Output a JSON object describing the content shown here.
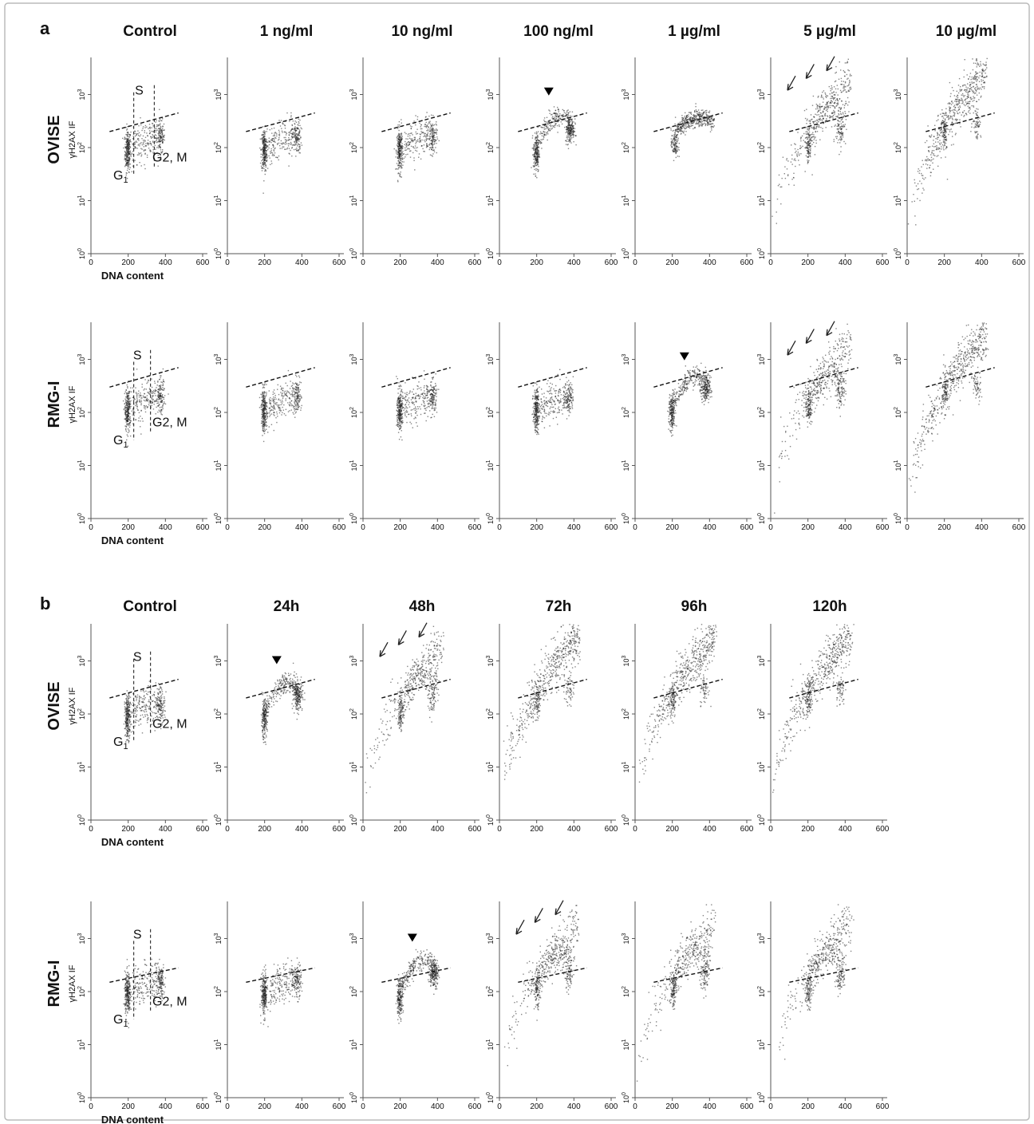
{
  "figure": {
    "panel_a": {
      "letter": "a",
      "columns": [
        "Control",
        "1 ng/ml",
        "10 ng/ml",
        "100 ng/ml",
        "1 µg/ml",
        "5 µg/ml",
        "10 µg/ml"
      ],
      "rows": [
        "OVISE",
        "RMG-I"
      ]
    },
    "panel_b": {
      "letter": "b",
      "columns": [
        "Control",
        "24h",
        "48h",
        "72h",
        "96h",
        "120h"
      ],
      "rows": [
        "OVISE",
        "RMG-I"
      ]
    },
    "y_axis_label": "γH2AX IF",
    "x_axis_label": "DNA content",
    "x_ticks": [
      "0",
      "200",
      "400",
      "600"
    ],
    "y_ticks": [
      "10",
      "10",
      "10",
      "10"
    ],
    "y_tick_exponents": [
      "0",
      "1",
      "2",
      "3"
    ],
    "phase_labels": {
      "g1": "G",
      "g1_sub": "1",
      "s": "S",
      "g2m": "G2, M"
    }
  },
  "colors": {
    "points": "#222222",
    "axes": "#555555",
    "threshold": "#111111",
    "frame": "#bbbbbb"
  },
  "chart_data": {
    "type": "scatter",
    "x_range": [
      0,
      600
    ],
    "y_scale": "log",
    "y_range": [
      1,
      5000
    ],
    "panels": [
      {
        "panel": "a",
        "row": "OVISE",
        "column": "Control",
        "profile": "cycle",
        "threshold": [
          [
            100,
            200
          ],
          [
            470,
            450
          ]
        ],
        "marker": "none"
      },
      {
        "panel": "a",
        "row": "OVISE",
        "column": "1 ng/ml",
        "profile": "cycle",
        "threshold": [
          [
            100,
            200
          ],
          [
            470,
            450
          ]
        ],
        "marker": "none"
      },
      {
        "panel": "a",
        "row": "OVISE",
        "column": "10 ng/ml",
        "profile": "cycle",
        "threshold": [
          [
            100,
            200
          ],
          [
            470,
            450
          ]
        ],
        "marker": "none"
      },
      {
        "panel": "a",
        "row": "OVISE",
        "column": "100 ng/ml",
        "profile": "rise",
        "threshold": [
          [
            100,
            200
          ],
          [
            470,
            450
          ]
        ],
        "marker": "arrowhead"
      },
      {
        "panel": "a",
        "row": "OVISE",
        "column": "1 µg/ml",
        "profile": "high",
        "threshold": [
          [
            100,
            200
          ],
          [
            470,
            450
          ]
        ],
        "marker": "none"
      },
      {
        "panel": "a",
        "row": "OVISE",
        "column": "5 µg/ml",
        "profile": "apoptotic",
        "threshold": [
          [
            100,
            200
          ],
          [
            470,
            450
          ]
        ],
        "marker": "arrows"
      },
      {
        "panel": "a",
        "row": "OVISE",
        "column": "10 µg/ml",
        "profile": "apoptotic-heavy",
        "threshold": [
          [
            100,
            200
          ],
          [
            470,
            450
          ]
        ],
        "marker": "none"
      },
      {
        "panel": "a",
        "row": "RMG-I",
        "column": "Control",
        "profile": "cycle",
        "threshold": [
          [
            100,
            300
          ],
          [
            470,
            700
          ]
        ],
        "marker": "none"
      },
      {
        "panel": "a",
        "row": "RMG-I",
        "column": "1 ng/ml",
        "profile": "cycle",
        "threshold": [
          [
            100,
            300
          ],
          [
            470,
            700
          ]
        ],
        "marker": "none"
      },
      {
        "panel": "a",
        "row": "RMG-I",
        "column": "10 ng/ml",
        "profile": "cycle",
        "threshold": [
          [
            100,
            300
          ],
          [
            470,
            700
          ]
        ],
        "marker": "none"
      },
      {
        "panel": "a",
        "row": "RMG-I",
        "column": "100 ng/ml",
        "profile": "cycle",
        "threshold": [
          [
            100,
            300
          ],
          [
            470,
            700
          ]
        ],
        "marker": "none"
      },
      {
        "panel": "a",
        "row": "RMG-I",
        "column": "1 µg/ml",
        "profile": "rise",
        "threshold": [
          [
            100,
            300
          ],
          [
            470,
            700
          ]
        ],
        "marker": "arrowhead"
      },
      {
        "panel": "a",
        "row": "RMG-I",
        "column": "5 µg/ml",
        "profile": "apoptotic",
        "threshold": [
          [
            100,
            300
          ],
          [
            470,
            700
          ]
        ],
        "marker": "arrows"
      },
      {
        "panel": "a",
        "row": "RMG-I",
        "column": "10 µg/ml",
        "profile": "apoptotic-heavy",
        "threshold": [
          [
            100,
            300
          ],
          [
            470,
            700
          ]
        ],
        "marker": "none"
      },
      {
        "panel": "b",
        "row": "OVISE",
        "column": "Control",
        "profile": "cycle",
        "threshold": [
          [
            100,
            200
          ],
          [
            470,
            450
          ]
        ],
        "marker": "none"
      },
      {
        "panel": "b",
        "row": "OVISE",
        "column": "24h",
        "profile": "rise",
        "threshold": [
          [
            100,
            200
          ],
          [
            470,
            450
          ]
        ],
        "marker": "arrowhead"
      },
      {
        "panel": "b",
        "row": "OVISE",
        "column": "48h",
        "profile": "apoptotic",
        "threshold": [
          [
            100,
            200
          ],
          [
            470,
            450
          ]
        ],
        "marker": "arrows"
      },
      {
        "panel": "b",
        "row": "OVISE",
        "column": "72h",
        "profile": "apoptotic-heavy",
        "threshold": [
          [
            100,
            200
          ],
          [
            470,
            450
          ]
        ],
        "marker": "none"
      },
      {
        "panel": "b",
        "row": "OVISE",
        "column": "96h",
        "profile": "apoptotic-heavy",
        "threshold": [
          [
            100,
            200
          ],
          [
            470,
            450
          ]
        ],
        "marker": "none"
      },
      {
        "panel": "b",
        "row": "OVISE",
        "column": "120h",
        "profile": "apoptotic-heavy",
        "threshold": [
          [
            100,
            200
          ],
          [
            470,
            450
          ]
        ],
        "marker": "none"
      },
      {
        "panel": "b",
        "row": "RMG-I",
        "column": "Control",
        "profile": "cycle",
        "threshold": [
          [
            100,
            150
          ],
          [
            470,
            280
          ]
        ],
        "marker": "none"
      },
      {
        "panel": "b",
        "row": "RMG-I",
        "column": "24h",
        "profile": "cycle",
        "threshold": [
          [
            100,
            150
          ],
          [
            470,
            280
          ]
        ],
        "marker": "none"
      },
      {
        "panel": "b",
        "row": "RMG-I",
        "column": "48h",
        "profile": "rise",
        "threshold": [
          [
            100,
            150
          ],
          [
            470,
            280
          ]
        ],
        "marker": "arrowhead"
      },
      {
        "panel": "b",
        "row": "RMG-I",
        "column": "72h",
        "profile": "apoptotic",
        "threshold": [
          [
            100,
            150
          ],
          [
            470,
            280
          ]
        ],
        "marker": "arrows"
      },
      {
        "panel": "b",
        "row": "RMG-I",
        "column": "96h",
        "profile": "apoptotic",
        "threshold": [
          [
            100,
            150
          ],
          [
            470,
            280
          ]
        ],
        "marker": "none"
      },
      {
        "panel": "b",
        "row": "RMG-I",
        "column": "120h",
        "profile": "apoptotic",
        "threshold": [
          [
            100,
            150
          ],
          [
            470,
            280
          ]
        ],
        "marker": "none"
      }
    ]
  }
}
